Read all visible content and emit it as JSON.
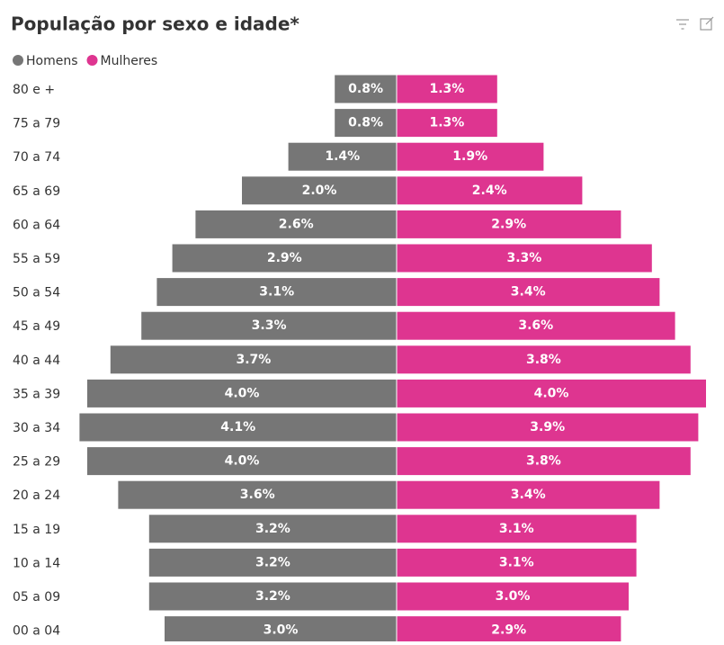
{
  "chart_data": {
    "type": "pyramid",
    "title": "População por sexo e idade*",
    "categories": [
      "80 e +",
      "75 a 79",
      "70 a 74",
      "65 a 69",
      "60 a 64",
      "55 a 59",
      "50 a 54",
      "45 a 49",
      "40 a 44",
      "35 a 39",
      "30 a 34",
      "25 a 29",
      "20 a 24",
      "15 a 19",
      "10 a 14",
      "05 a 09",
      "00 a 04"
    ],
    "series": [
      {
        "name": "Homens",
        "color": "#767676",
        "values": [
          0.8,
          0.8,
          1.4,
          2.0,
          2.6,
          2.9,
          3.1,
          3.3,
          3.7,
          4.0,
          4.1,
          4.0,
          3.6,
          3.2,
          3.2,
          3.2,
          3.0
        ],
        "value_labels": [
          "0.8%",
          "0.8%",
          "1.4%",
          "2.0%",
          "2.6%",
          "2.9%",
          "3.1%",
          "3.3%",
          "3.7%",
          "4.0%",
          "4.1%",
          "4.0%",
          "3.6%",
          "3.2%",
          "3.2%",
          "3.2%",
          "3.0%"
        ]
      },
      {
        "name": "Mulheres",
        "color": "#de3590",
        "values": [
          1.3,
          1.3,
          1.9,
          2.4,
          2.9,
          3.3,
          3.4,
          3.6,
          3.8,
          4.0,
          3.9,
          3.8,
          3.4,
          3.1,
          3.1,
          3.0,
          2.9
        ],
        "value_labels": [
          "1.3%",
          "1.3%",
          "1.9%",
          "2.4%",
          "2.9%",
          "3.3%",
          "3.4%",
          "3.6%",
          "3.8%",
          "4.0%",
          "3.9%",
          "3.8%",
          "3.4%",
          "3.1%",
          "3.1%",
          "3.0%",
          "2.9%"
        ]
      }
    ]
  }
}
